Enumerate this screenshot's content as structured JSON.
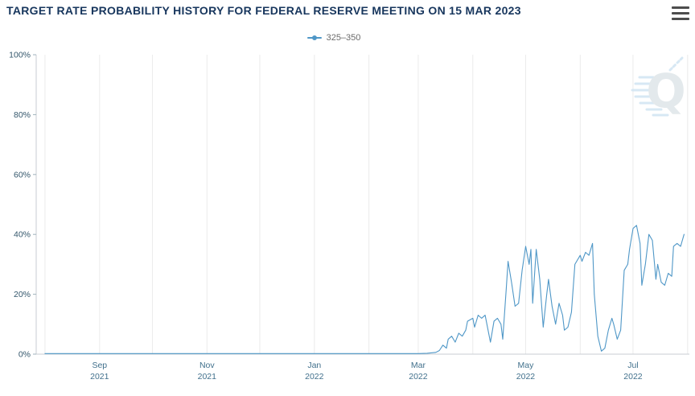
{
  "header": {
    "title": "TARGET RATE PROBABILITY HISTORY FOR FEDERAL RESERVE MEETING ON 15 MAR 2023"
  },
  "menu": {
    "icon": "hamburger-icon"
  },
  "legend": {
    "items": [
      {
        "label": "325–350",
        "color": "#4f97c7"
      }
    ]
  },
  "watermark": {
    "letter": "Q",
    "color": "#e1e7ea",
    "accent": "#d3e6f3"
  },
  "colors": {
    "title": "#17365d",
    "line": "#4f97c7",
    "grid": "#ebebeb",
    "axis": "#c9ced3",
    "y_label": "#33566b",
    "x_label": "#41708c"
  },
  "chart_data": {
    "type": "line",
    "title": "TARGET RATE PROBABILITY HISTORY FOR FEDERAL RESERVE MEETING ON 15 MAR 2023",
    "xlabel": "",
    "ylabel": "",
    "ylim": [
      0,
      100
    ],
    "grid": "vertical-monthly",
    "legend_position": "top-center",
    "x_domain": [
      "2021-07-27",
      "2022-08-02"
    ],
    "y_ticks": [
      {
        "value": 0,
        "label": "0%"
      },
      {
        "value": 20,
        "label": "20%"
      },
      {
        "value": 40,
        "label": "40%"
      },
      {
        "value": 60,
        "label": "60%"
      },
      {
        "value": 80,
        "label": "80%"
      },
      {
        "value": 100,
        "label": "100%"
      }
    ],
    "x_ticks": [
      {
        "date": "2021-09-01",
        "line1": "Sep",
        "line2": "2021"
      },
      {
        "date": "2021-11-01",
        "line1": "Nov",
        "line2": "2021"
      },
      {
        "date": "2022-01-01",
        "line1": "Jan",
        "line2": "2022"
      },
      {
        "date": "2022-03-01",
        "line1": "Mar",
        "line2": "2022"
      },
      {
        "date": "2022-05-01",
        "line1": "May",
        "line2": "2022"
      },
      {
        "date": "2022-07-01",
        "line1": "Jul",
        "line2": "2022"
      }
    ],
    "grid_dates": [
      "2021-08-01",
      "2021-09-01",
      "2021-10-01",
      "2021-11-01",
      "2021-12-01",
      "2022-01-01",
      "2022-02-01",
      "2022-03-01",
      "2022-04-01",
      "2022-05-01",
      "2022-06-01",
      "2022-07-01",
      "2022-08-01"
    ],
    "series": [
      {
        "name": "325–350",
        "color": "#4f97c7",
        "points": [
          [
            "2021-08-01",
            0.2
          ],
          [
            "2021-08-15",
            0.2
          ],
          [
            "2021-09-01",
            0.2
          ],
          [
            "2021-09-15",
            0.2
          ],
          [
            "2021-10-01",
            0.2
          ],
          [
            "2021-10-15",
            0.2
          ],
          [
            "2021-11-01",
            0.2
          ],
          [
            "2021-11-15",
            0.2
          ],
          [
            "2021-12-01",
            0.2
          ],
          [
            "2021-12-15",
            0.2
          ],
          [
            "2022-01-01",
            0.2
          ],
          [
            "2022-01-15",
            0.2
          ],
          [
            "2022-02-01",
            0.2
          ],
          [
            "2022-02-15",
            0.2
          ],
          [
            "2022-03-01",
            0.2
          ],
          [
            "2022-03-06",
            0.3
          ],
          [
            "2022-03-11",
            0.6
          ],
          [
            "2022-03-13",
            1.2
          ],
          [
            "2022-03-15",
            3
          ],
          [
            "2022-03-17",
            2
          ],
          [
            "2022-03-18",
            5
          ],
          [
            "2022-03-20",
            6
          ],
          [
            "2022-03-22",
            4
          ],
          [
            "2022-03-24",
            7
          ],
          [
            "2022-03-26",
            6
          ],
          [
            "2022-03-28",
            8
          ],
          [
            "2022-03-29",
            11
          ],
          [
            "2022-04-01",
            12
          ],
          [
            "2022-04-02",
            9
          ],
          [
            "2022-04-04",
            13
          ],
          [
            "2022-04-06",
            12
          ],
          [
            "2022-04-08",
            13
          ],
          [
            "2022-04-10",
            7
          ],
          [
            "2022-04-11",
            4
          ],
          [
            "2022-04-13",
            11
          ],
          [
            "2022-04-15",
            12
          ],
          [
            "2022-04-17",
            10
          ],
          [
            "2022-04-18",
            5
          ],
          [
            "2022-04-20",
            22
          ],
          [
            "2022-04-21",
            31
          ],
          [
            "2022-04-23",
            24
          ],
          [
            "2022-04-25",
            16
          ],
          [
            "2022-04-27",
            17
          ],
          [
            "2022-04-29",
            28
          ],
          [
            "2022-05-01",
            36
          ],
          [
            "2022-05-03",
            30
          ],
          [
            "2022-05-04",
            35
          ],
          [
            "2022-05-05",
            17
          ],
          [
            "2022-05-07",
            35
          ],
          [
            "2022-05-09",
            25
          ],
          [
            "2022-05-11",
            9
          ],
          [
            "2022-05-13",
            20
          ],
          [
            "2022-05-14",
            25
          ],
          [
            "2022-05-16",
            16
          ],
          [
            "2022-05-18",
            10
          ],
          [
            "2022-05-20",
            17
          ],
          [
            "2022-05-22",
            13
          ],
          [
            "2022-05-23",
            8
          ],
          [
            "2022-05-25",
            9
          ],
          [
            "2022-05-27",
            14
          ],
          [
            "2022-05-29",
            30
          ],
          [
            "2022-06-01",
            33
          ],
          [
            "2022-06-02",
            31
          ],
          [
            "2022-06-04",
            34
          ],
          [
            "2022-06-06",
            33
          ],
          [
            "2022-06-08",
            37
          ],
          [
            "2022-06-09",
            20
          ],
          [
            "2022-06-11",
            6
          ],
          [
            "2022-06-13",
            1
          ],
          [
            "2022-06-15",
            2
          ],
          [
            "2022-06-17",
            8
          ],
          [
            "2022-06-19",
            12
          ],
          [
            "2022-06-20",
            10
          ],
          [
            "2022-06-22",
            5
          ],
          [
            "2022-06-24",
            8
          ],
          [
            "2022-06-26",
            28
          ],
          [
            "2022-06-28",
            30
          ],
          [
            "2022-06-29",
            35
          ],
          [
            "2022-07-01",
            42
          ],
          [
            "2022-07-03",
            43
          ],
          [
            "2022-07-05",
            37
          ],
          [
            "2022-07-06",
            23
          ],
          [
            "2022-07-08",
            30
          ],
          [
            "2022-07-10",
            40
          ],
          [
            "2022-07-12",
            38
          ],
          [
            "2022-07-14",
            25
          ],
          [
            "2022-07-15",
            30
          ],
          [
            "2022-07-17",
            24
          ],
          [
            "2022-07-19",
            23
          ],
          [
            "2022-07-21",
            27
          ],
          [
            "2022-07-23",
            26
          ],
          [
            "2022-07-24",
            36
          ],
          [
            "2022-07-26",
            37
          ],
          [
            "2022-07-28",
            36
          ],
          [
            "2022-07-30",
            40
          ]
        ]
      }
    ]
  }
}
